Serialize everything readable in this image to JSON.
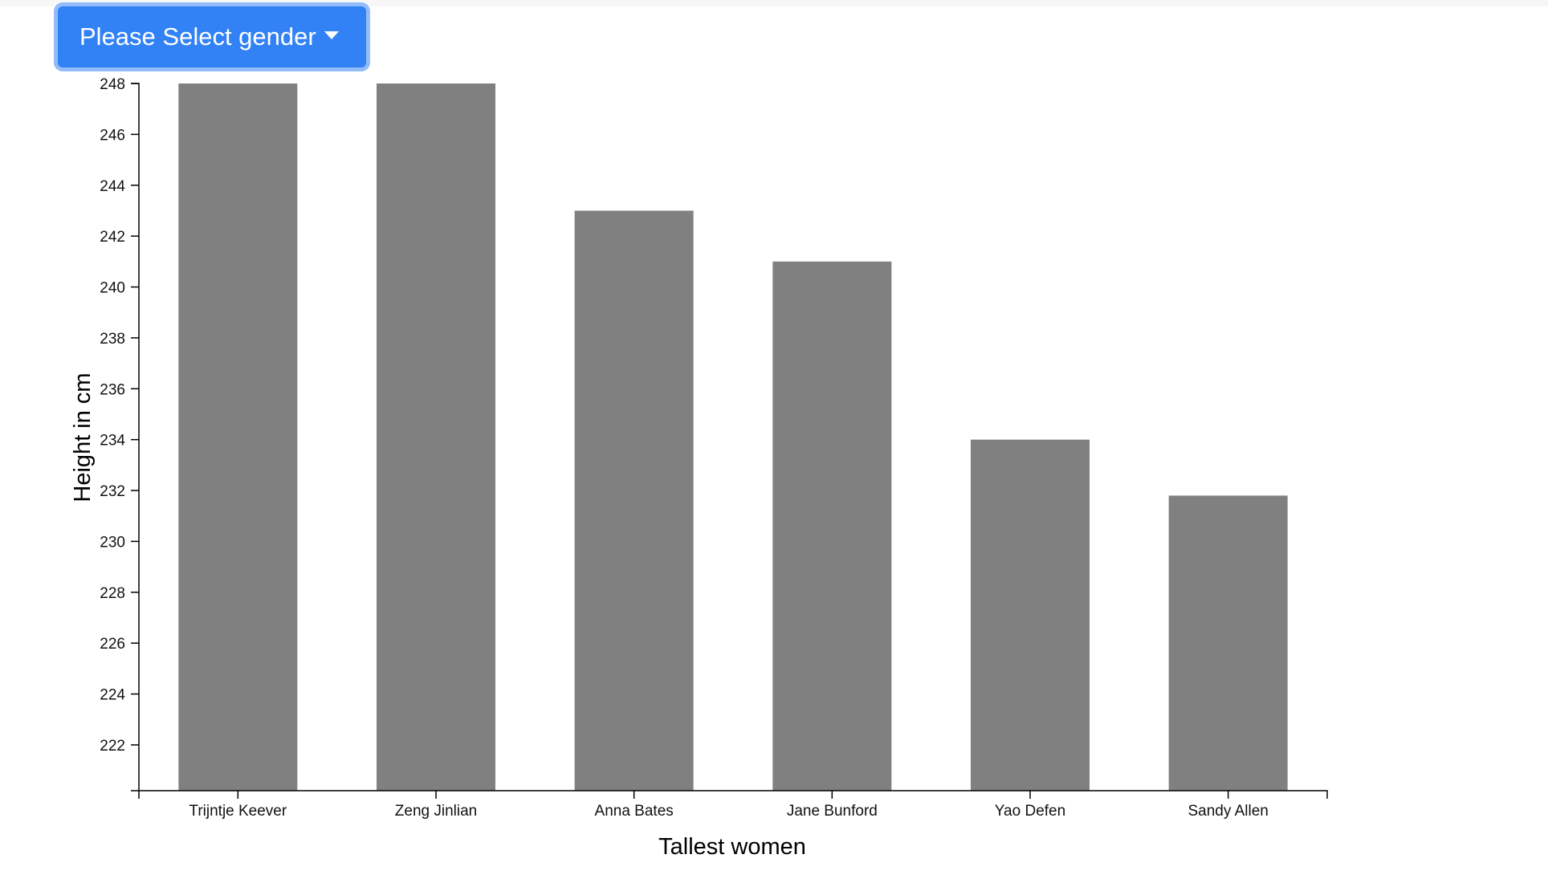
{
  "dropdown": {
    "label": "Please Select gender",
    "color": "#3282f6"
  },
  "chart_data": {
    "type": "bar",
    "categories": [
      "Trijntje Keever",
      "Zeng Jinlian",
      "Anna Bates",
      "Jane Bunford",
      "Yao Defen",
      "Sandy Allen"
    ],
    "values": [
      248,
      248,
      243,
      241,
      234,
      231.8
    ],
    "xlabel": "Tallest women",
    "ylabel": "Height in cm",
    "ylim": [
      220.2,
      248
    ],
    "yticks": [
      222,
      224,
      226,
      228,
      230,
      232,
      234,
      236,
      238,
      240,
      242,
      244,
      246,
      248
    ],
    "bar_color": "#808080",
    "grid": false,
    "legend": "none"
  }
}
